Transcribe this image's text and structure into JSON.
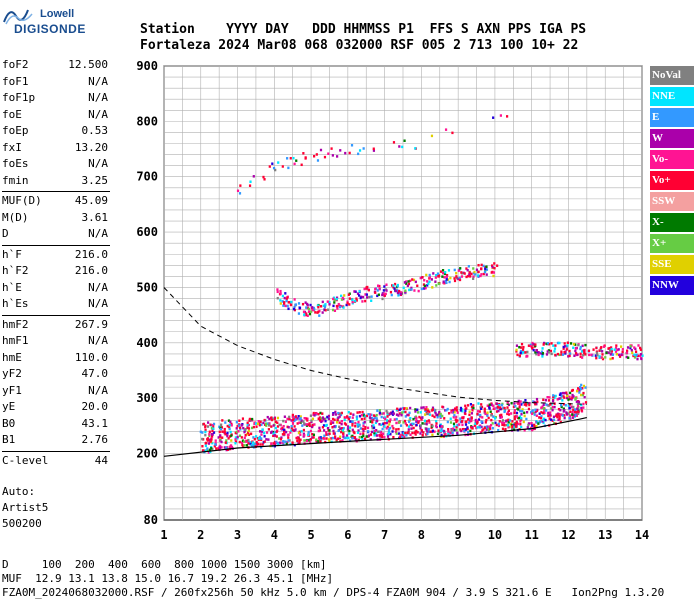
{
  "logo": {
    "line1": "Lowell",
    "line2": "DIGISONDE"
  },
  "header": {
    "line1": "Station    YYYY DAY   DDD HHMMSS P1  FFS S AXN PPS IGA PS",
    "line2": "Fortaleza 2024 Mar08 068 032000 RSF 005 2 713 100 10+ 22"
  },
  "params": {
    "group1": [
      {
        "label": "foF2",
        "value": "12.500"
      },
      {
        "label": "foF1",
        "value": "N/A"
      },
      {
        "label": "foF1p",
        "value": "N/A"
      },
      {
        "label": "foE",
        "value": "N/A"
      },
      {
        "label": "foEp",
        "value": "0.53"
      },
      {
        "label": "fxI",
        "value": "13.20"
      },
      {
        "label": "foEs",
        "value": "N/A"
      },
      {
        "label": "fmin",
        "value": "3.25"
      }
    ],
    "group2": [
      {
        "label": "MUF(D)",
        "value": "45.09"
      },
      {
        "label": "M(D)",
        "value": "3.61"
      },
      {
        "label": "D",
        "value": "N/A"
      }
    ],
    "group3": [
      {
        "label": "h`F",
        "value": "216.0"
      },
      {
        "label": "h`F2",
        "value": "216.0"
      },
      {
        "label": "h`E",
        "value": "N/A"
      },
      {
        "label": "h`Es",
        "value": "N/A"
      }
    ],
    "group4": [
      {
        "label": "hmF2",
        "value": "267.9"
      },
      {
        "label": "hmF1",
        "value": "N/A"
      },
      {
        "label": "hmE",
        "value": "110.0"
      },
      {
        "label": "yF2",
        "value": "47.0"
      },
      {
        "label": "yF1",
        "value": "N/A"
      },
      {
        "label": "yE",
        "value": "20.0"
      },
      {
        "label": "B0",
        "value": "43.1"
      },
      {
        "label": "B1",
        "value": "2.76"
      }
    ],
    "group5": [
      {
        "label": "C-level",
        "value": "44"
      }
    ]
  },
  "autoscale": {
    "line1": "Auto:",
    "line2": "Artist5",
    "line3": "500200"
  },
  "legend": [
    {
      "label": "NoVal",
      "color": "#808080"
    },
    {
      "label": "NNE",
      "color": "#00e5ff"
    },
    {
      "label": "E",
      "color": "#3399ff"
    },
    {
      "label": "W",
      "color": "#aa00aa"
    },
    {
      "label": "Vo-",
      "color": "#ff1493"
    },
    {
      "label": "Vo+",
      "color": "#ff0033"
    },
    {
      "label": "SSW",
      "color": "#f4a0a0"
    },
    {
      "label": "X-",
      "color": "#007a00"
    },
    {
      "label": "X+",
      "color": "#66cc44"
    },
    {
      "label": "SSE",
      "color": "#e0d000"
    },
    {
      "label": "NNW",
      "color": "#2200dd"
    }
  ],
  "footer": {
    "line1": "D     100  200  400  600  800 1000 1500 3000 [km]",
    "line2": "MUF  12.9 13.1 13.8 15.0 16.7 19.2 26.3 45.1 [MHz]",
    "line3": "FZA0M_2024068032000.RSF / 260fx256h 50 kHz 5.0 km / DPS-4 FZA0M 904 / 3.9 S 321.6 E   Ion2Png 1.3.20"
  },
  "chart_data": {
    "type": "scatter",
    "xlim": [
      1,
      14
    ],
    "ylim": [
      80,
      900
    ],
    "x_ticks": [
      1,
      2,
      3,
      4,
      5,
      6,
      7,
      8,
      9,
      10,
      11,
      12,
      13,
      14
    ],
    "y_ticks": [
      80,
      200,
      300,
      400,
      500,
      600,
      700,
      800,
      900
    ],
    "grid": true,
    "trace_main_points": [
      [
        2.0,
        230
      ],
      [
        2.5,
        235
      ],
      [
        3.0,
        238
      ],
      [
        3.5,
        240
      ],
      [
        4.0,
        242
      ],
      [
        4.5,
        245
      ],
      [
        5.0,
        248
      ],
      [
        5.5,
        250
      ],
      [
        6.0,
        250
      ],
      [
        6.5,
        252
      ],
      [
        7.0,
        255
      ],
      [
        7.5,
        257
      ],
      [
        8.0,
        258
      ],
      [
        8.5,
        260
      ],
      [
        9.0,
        262
      ],
      [
        9.5,
        265
      ],
      [
        10.0,
        268
      ],
      [
        10.5,
        270
      ],
      [
        11.0,
        272
      ],
      [
        11.5,
        278
      ],
      [
        12.0,
        290
      ],
      [
        12.4,
        300
      ]
    ],
    "trace_x_points": [
      [
        4.0,
        490
      ],
      [
        4.5,
        470
      ],
      [
        5.0,
        460
      ],
      [
        5.5,
        470
      ],
      [
        6.0,
        480
      ],
      [
        6.5,
        490
      ],
      [
        7.0,
        495
      ],
      [
        7.5,
        500
      ],
      [
        8.0,
        510
      ],
      [
        8.5,
        520
      ],
      [
        9.0,
        525
      ],
      [
        9.5,
        530
      ],
      [
        10.0,
        535
      ]
    ],
    "multi_hop_points": [
      [
        3.0,
        680
      ],
      [
        3.5,
        700
      ],
      [
        4.0,
        720
      ],
      [
        4.5,
        730
      ],
      [
        5.0,
        740
      ],
      [
        5.5,
        745
      ],
      [
        6.0,
        750
      ],
      [
        7.0,
        755
      ],
      [
        8.0,
        765
      ],
      [
        10.3,
        815
      ]
    ],
    "es_points": [
      [
        10.5,
        390
      ],
      [
        11.0,
        390
      ],
      [
        11.5,
        390
      ],
      [
        12.0,
        390
      ],
      [
        12.5,
        385
      ],
      [
        13.0,
        385
      ],
      [
        13.5,
        385
      ],
      [
        14.0,
        385
      ]
    ],
    "profile_curve": [
      [
        1.0,
        195
      ],
      [
        3,
        210
      ],
      [
        6,
        222
      ],
      [
        9,
        233
      ],
      [
        11,
        245
      ],
      [
        12.3,
        262
      ],
      [
        12.5,
        265
      ]
    ],
    "muf_curve": [
      [
        1.0,
        500
      ],
      [
        2,
        430
      ],
      [
        3,
        395
      ],
      [
        4,
        370
      ],
      [
        5,
        350
      ],
      [
        6,
        335
      ],
      [
        7,
        322
      ],
      [
        8,
        312
      ],
      [
        9,
        302
      ],
      [
        10,
        296
      ],
      [
        11,
        292
      ],
      [
        12,
        290
      ],
      [
        12.5,
        289
      ]
    ]
  }
}
